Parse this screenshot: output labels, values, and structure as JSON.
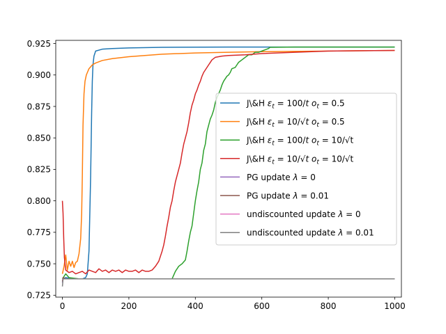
{
  "chart_data": {
    "type": "line",
    "title": "",
    "xlabel": "",
    "ylabel": "",
    "xlim": [
      -20,
      1020
    ],
    "ylim": [
      0.7235,
      0.9275
    ],
    "xticks": [
      0,
      200,
      400,
      600,
      800,
      1000
    ],
    "xtick_labels": [
      "0",
      "200",
      "400",
      "600",
      "800",
      "1000"
    ],
    "yticks": [
      0.725,
      0.75,
      0.775,
      0.8,
      0.825,
      0.85,
      0.875,
      0.9,
      0.925
    ],
    "ytick_labels": [
      "0.725",
      "0.750",
      "0.775",
      "0.800",
      "0.825",
      "0.850",
      "0.875",
      "0.900",
      "0.925"
    ],
    "grid": false,
    "legend_position": "center-right",
    "series": [
      {
        "name": "J\\&H εt = 100/t ot = 0.5",
        "legend": {
          "main": "J\\&H ",
          "eps": "ε",
          "sub1": "t",
          "mid": " = 100/",
          "tvar": "t",
          "o": "o",
          "sub2": "t",
          "tail": " = 0.5"
        },
        "color": "#1f77b4",
        "points": [
          [
            0,
            0.738
          ],
          [
            10,
            0.739
          ],
          [
            30,
            0.738
          ],
          [
            60,
            0.738
          ],
          [
            70,
            0.739
          ],
          [
            75,
            0.742
          ],
          [
            80,
            0.76
          ],
          [
            85,
            0.82
          ],
          [
            88,
            0.87
          ],
          [
            90,
            0.895
          ],
          [
            92,
            0.908
          ],
          [
            95,
            0.915
          ],
          [
            100,
            0.919
          ],
          [
            120,
            0.9205
          ],
          [
            150,
            0.921
          ],
          [
            200,
            0.9215
          ],
          [
            300,
            0.922
          ],
          [
            500,
            0.9222
          ],
          [
            700,
            0.9222
          ],
          [
            1000,
            0.9222
          ]
        ]
      },
      {
        "name": "J\\&H εt = 10/√t ot = 0.5",
        "legend": {
          "main": "J\\&H ",
          "eps": "ε",
          "sub1": "t",
          "mid": " = 10/√",
          "tvar": "t",
          "o": "o",
          "sub2": "t",
          "tail": " = 0.5"
        },
        "color": "#ff7f0e",
        "points": [
          [
            0,
            0.742
          ],
          [
            5,
            0.748
          ],
          [
            10,
            0.757
          ],
          [
            15,
            0.745
          ],
          [
            20,
            0.752
          ],
          [
            25,
            0.748
          ],
          [
            30,
            0.752
          ],
          [
            35,
            0.747
          ],
          [
            40,
            0.751
          ],
          [
            45,
            0.752
          ],
          [
            50,
            0.758
          ],
          [
            55,
            0.77
          ],
          [
            58,
            0.79
          ],
          [
            60,
            0.82
          ],
          [
            62,
            0.86
          ],
          [
            65,
            0.885
          ],
          [
            68,
            0.895
          ],
          [
            72,
            0.9
          ],
          [
            80,
            0.905
          ],
          [
            90,
            0.908
          ],
          [
            100,
            0.9095
          ],
          [
            120,
            0.9115
          ],
          [
            150,
            0.913
          ],
          [
            200,
            0.9145
          ],
          [
            300,
            0.9165
          ],
          [
            400,
            0.9175
          ],
          [
            500,
            0.918
          ],
          [
            600,
            0.9185
          ],
          [
            800,
            0.919
          ],
          [
            1000,
            0.9195
          ]
        ]
      },
      {
        "name": "J\\&H εt = 100/t ot = 10/√t",
        "legend": {
          "main": "J\\&H ",
          "eps": "ε",
          "sub1": "t",
          "mid": " = 100/",
          "tvar": "t",
          "o": "o",
          "sub2": "t",
          "tail": " = 10/√t"
        },
        "color": "#2ca02c",
        "points": [
          [
            0,
            0.738
          ],
          [
            10,
            0.742
          ],
          [
            20,
            0.739
          ],
          [
            50,
            0.738
          ],
          [
            100,
            0.738
          ],
          [
            200,
            0.738
          ],
          [
            300,
            0.738
          ],
          [
            330,
            0.738
          ],
          [
            340,
            0.744
          ],
          [
            350,
            0.748
          ],
          [
            360,
            0.75
          ],
          [
            370,
            0.753
          ],
          [
            375,
            0.76
          ],
          [
            380,
            0.768
          ],
          [
            385,
            0.775
          ],
          [
            390,
            0.78
          ],
          [
            395,
            0.79
          ],
          [
            400,
            0.8
          ],
          [
            405,
            0.808
          ],
          [
            410,
            0.815
          ],
          [
            415,
            0.825
          ],
          [
            420,
            0.83
          ],
          [
            425,
            0.84
          ],
          [
            430,
            0.845
          ],
          [
            435,
            0.855
          ],
          [
            440,
            0.86
          ],
          [
            445,
            0.865
          ],
          [
            450,
            0.868
          ],
          [
            455,
            0.872
          ],
          [
            460,
            0.878
          ],
          [
            465,
            0.882
          ],
          [
            470,
            0.885
          ],
          [
            475,
            0.888
          ],
          [
            480,
            0.892
          ],
          [
            485,
            0.895
          ],
          [
            490,
            0.897
          ],
          [
            495,
            0.899
          ],
          [
            500,
            0.9
          ],
          [
            505,
            0.902
          ],
          [
            510,
            0.905
          ],
          [
            520,
            0.906
          ],
          [
            525,
            0.908
          ],
          [
            530,
            0.91
          ],
          [
            535,
            0.911
          ],
          [
            540,
            0.912
          ],
          [
            545,
            0.913
          ],
          [
            550,
            0.914
          ],
          [
            555,
            0.915
          ],
          [
            560,
            0.916
          ],
          [
            570,
            0.916
          ],
          [
            575,
            0.917
          ],
          [
            580,
            0.918
          ],
          [
            590,
            0.918
          ],
          [
            600,
            0.919
          ],
          [
            610,
            0.92
          ],
          [
            620,
            0.921
          ],
          [
            625,
            0.922
          ],
          [
            700,
            0.9222
          ],
          [
            800,
            0.9222
          ],
          [
            1000,
            0.9222
          ]
        ]
      },
      {
        "name": "J\\&H εt = 10/√t ot = 10/√t",
        "legend": {
          "main": "J\\&H ",
          "eps": "ε",
          "sub1": "t",
          "mid": " = 10/√",
          "tvar": "t",
          "o": "o",
          "sub2": "t",
          "tail": " = 10/√t"
        },
        "color": "#d62728",
        "points": [
          [
            0,
            0.8
          ],
          [
            2,
            0.79
          ],
          [
            4,
            0.77
          ],
          [
            6,
            0.755
          ],
          [
            8,
            0.75
          ],
          [
            10,
            0.745
          ],
          [
            20,
            0.743
          ],
          [
            30,
            0.744
          ],
          [
            40,
            0.742
          ],
          [
            50,
            0.743
          ],
          [
            60,
            0.744
          ],
          [
            70,
            0.742
          ],
          [
            80,
            0.745
          ],
          [
            90,
            0.744
          ],
          [
            100,
            0.743
          ],
          [
            110,
            0.746
          ],
          [
            120,
            0.744
          ],
          [
            130,
            0.745
          ],
          [
            140,
            0.743
          ],
          [
            150,
            0.745
          ],
          [
            160,
            0.744
          ],
          [
            170,
            0.745
          ],
          [
            180,
            0.743
          ],
          [
            190,
            0.745
          ],
          [
            200,
            0.744
          ],
          [
            210,
            0.744
          ],
          [
            220,
            0.745
          ],
          [
            230,
            0.743
          ],
          [
            240,
            0.745
          ],
          [
            250,
            0.744
          ],
          [
            260,
            0.744
          ],
          [
            270,
            0.745
          ],
          [
            280,
            0.748
          ],
          [
            290,
            0.752
          ],
          [
            300,
            0.76
          ],
          [
            305,
            0.765
          ],
          [
            310,
            0.772
          ],
          [
            315,
            0.78
          ],
          [
            320,
            0.787
          ],
          [
            325,
            0.795
          ],
          [
            330,
            0.8
          ],
          [
            335,
            0.808
          ],
          [
            340,
            0.815
          ],
          [
            345,
            0.82
          ],
          [
            350,
            0.825
          ],
          [
            355,
            0.83
          ],
          [
            360,
            0.838
          ],
          [
            365,
            0.845
          ],
          [
            370,
            0.85
          ],
          [
            375,
            0.855
          ],
          [
            380,
            0.862
          ],
          [
            385,
            0.87
          ],
          [
            390,
            0.876
          ],
          [
            395,
            0.88
          ],
          [
            400,
            0.885
          ],
          [
            405,
            0.888
          ],
          [
            410,
            0.892
          ],
          [
            415,
            0.895
          ],
          [
            420,
            0.899
          ],
          [
            425,
            0.902
          ],
          [
            430,
            0.904
          ],
          [
            435,
            0.906
          ],
          [
            440,
            0.908
          ],
          [
            445,
            0.91
          ],
          [
            450,
            0.912
          ],
          [
            460,
            0.914
          ],
          [
            470,
            0.9145
          ],
          [
            480,
            0.915
          ],
          [
            500,
            0.9155
          ],
          [
            550,
            0.916
          ],
          [
            600,
            0.917
          ],
          [
            700,
            0.918
          ],
          [
            800,
            0.919
          ],
          [
            1000,
            0.9195
          ]
        ]
      },
      {
        "name": "PG update λ = 0",
        "legend": {
          "text": "PG update ",
          "lam": "λ",
          "tail": " = 0"
        },
        "color": "#9467bd",
        "points": [
          [
            0,
            0.735
          ],
          [
            2,
            0.738
          ],
          [
            10,
            0.738
          ],
          [
            1000,
            0.738
          ]
        ]
      },
      {
        "name": "PG update λ = 0.01",
        "legend": {
          "text": "PG update ",
          "lam": "λ",
          "tail": " = 0.01"
        },
        "color": "#8c564b",
        "points": [
          [
            0,
            0.736
          ],
          [
            2,
            0.739
          ],
          [
            10,
            0.738
          ],
          [
            1000,
            0.738
          ]
        ]
      },
      {
        "name": "undiscounted update λ = 0",
        "legend": {
          "text": "undiscounted update ",
          "lam": "λ",
          "tail": " = 0"
        },
        "color": "#e377c2",
        "points": [
          [
            0,
            0.737
          ],
          [
            2,
            0.738
          ],
          [
            10,
            0.738
          ],
          [
            1000,
            0.738
          ]
        ]
      },
      {
        "name": "undiscounted update λ = 0.01",
        "legend": {
          "text": "undiscounted update ",
          "lam": "λ",
          "tail": " = 0.01"
        },
        "color": "#7f7f7f",
        "points": [
          [
            0,
            0.732
          ],
          [
            2,
            0.738
          ],
          [
            10,
            0.738
          ],
          [
            1000,
            0.738
          ]
        ]
      }
    ]
  }
}
